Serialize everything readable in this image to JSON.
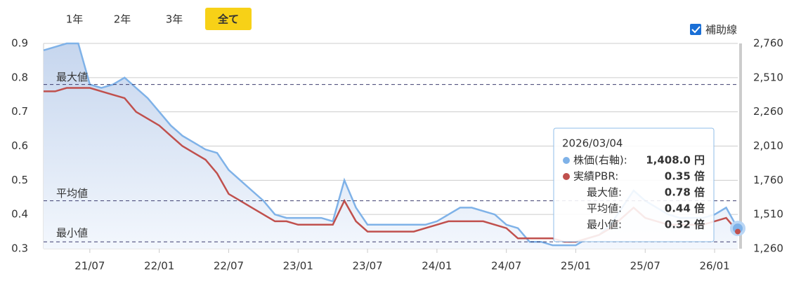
{
  "chart_data": {
    "type": "line",
    "buttons": [
      "1年",
      "2年",
      "3年",
      "全て"
    ],
    "active_button": 3,
    "checkbox_label": "補助線",
    "x": [
      "21/03",
      "21/04",
      "21/05",
      "21/06",
      "21/07",
      "21/08",
      "21/09",
      "21/10",
      "21/11",
      "21/12",
      "22/01",
      "22/02",
      "22/03",
      "22/04",
      "22/05",
      "22/06",
      "22/07",
      "22/08",
      "22/09",
      "22/10",
      "22/11",
      "22/12",
      "23/01",
      "23/02",
      "23/03",
      "23/04",
      "23/05",
      "23/06",
      "23/07",
      "23/08",
      "23/09",
      "23/10",
      "23/11",
      "23/12",
      "24/01",
      "24/02",
      "24/03",
      "24/04",
      "24/05",
      "24/06",
      "24/07",
      "24/08",
      "24/09",
      "24/10",
      "24/11",
      "24/12",
      "25/01",
      "25/02",
      "25/03",
      "25/04",
      "25/05",
      "25/06",
      "25/07",
      "25/08",
      "25/09",
      "25/10",
      "25/11",
      "25/12",
      "26/01",
      "26/02",
      "26/03"
    ],
    "xticks": [
      "21/07",
      "22/01",
      "22/07",
      "23/01",
      "23/07",
      "24/01",
      "24/07",
      "25/01",
      "25/07",
      "26/01"
    ],
    "series": [
      {
        "color": "#7fb2e8",
        "axis": "y2",
        "area": true,
        "values": [
          2710,
          2735,
          2760,
          2760,
          2460,
          2435,
          2460,
          2510,
          2435,
          2360,
          2260,
          2160,
          2085,
          2035,
          1985,
          1960,
          1835,
          1760,
          1685,
          1610,
          1510,
          1485,
          1485,
          1485,
          1485,
          1460,
          1760,
          1560,
          1435,
          1435,
          1435,
          1435,
          1435,
          1435,
          1460,
          1510,
          1560,
          1560,
          1535,
          1510,
          1435,
          1410,
          1310,
          1310,
          1285,
          1285,
          1285,
          1335,
          1360,
          1435,
          1560,
          1685,
          1610,
          1560,
          1510,
          1485,
          1485,
          1485,
          1510,
          1560,
          1408
        ]
      },
      {
        "color": "#c0504d",
        "values": [
          0.76,
          0.76,
          0.77,
          0.77,
          0.77,
          0.76,
          0.75,
          0.74,
          0.7,
          0.68,
          0.66,
          0.63,
          0.6,
          0.58,
          0.56,
          0.52,
          0.46,
          0.44,
          0.42,
          0.4,
          0.38,
          0.38,
          0.37,
          0.37,
          0.37,
          0.37,
          0.44,
          0.38,
          0.35,
          0.35,
          0.35,
          0.35,
          0.35,
          0.36,
          0.37,
          0.38,
          0.38,
          0.38,
          0.38,
          0.37,
          0.36,
          0.33,
          0.33,
          0.33,
          0.33,
          0.32,
          0.32,
          0.33,
          0.34,
          0.36,
          0.39,
          0.42,
          0.39,
          0.38,
          0.37,
          0.37,
          0.37,
          0.37,
          0.38,
          0.39,
          0.35
        ]
      }
    ],
    "ylim": [
      0.3,
      0.9
    ],
    "yticks": [
      0.3,
      0.4,
      0.5,
      0.6,
      0.7,
      0.8,
      0.9
    ],
    "y2lim": [
      1260,
      2760
    ],
    "y2ticks": [
      {
        "value": 1260,
        "label": "1,260"
      },
      {
        "value": 1510,
        "label": "1,510"
      },
      {
        "value": 1760,
        "label": "1,760"
      },
      {
        "value": 2010,
        "label": "2,010"
      },
      {
        "value": 2260,
        "label": "2,260"
      },
      {
        "value": 2510,
        "label": "2,510"
      },
      {
        "value": 2760,
        "label": "2,760"
      }
    ],
    "grid": true,
    "reference_lines": [
      {
        "name": "最大値",
        "value": 0.78
      },
      {
        "name": "平均値",
        "value": 0.44
      },
      {
        "name": "最小値",
        "value": 0.32
      }
    ],
    "tooltip": {
      "date": "2026/03/04",
      "rows": [
        {
          "label": "株価(右軸):",
          "value": "1,408.0 円",
          "color": "#7fb2e8"
        },
        {
          "label": "実績PBR:",
          "value": "0.35 倍",
          "color": "#c0504d"
        },
        {
          "label": "最大値:",
          "value": "0.78 倍"
        },
        {
          "label": "平均値:",
          "value": "0.44 倍"
        },
        {
          "label": "最小値:",
          "value": "0.32 倍"
        }
      ]
    }
  }
}
